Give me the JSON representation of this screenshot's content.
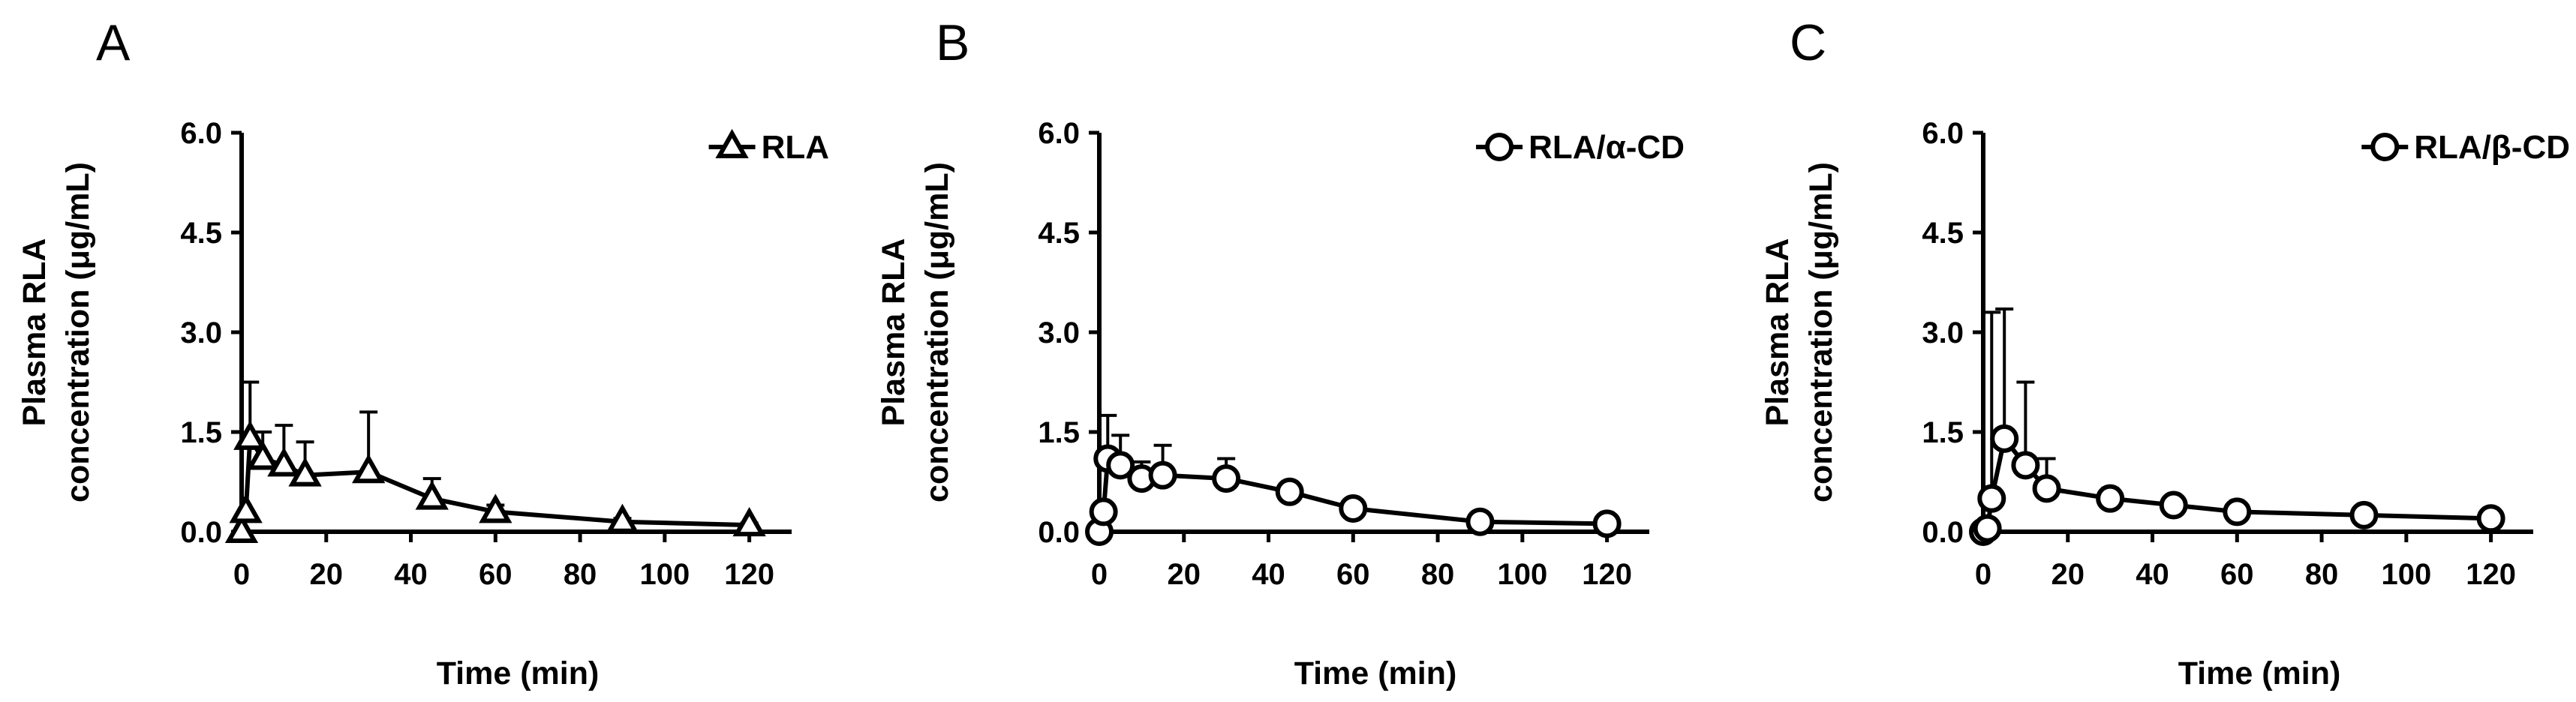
{
  "chart_data": [
    {
      "type": "line",
      "panel_label": "A",
      "xlabel": "Time (min)",
      "ylabel": [
        "Plasma RLA",
        "concentration  (μg/mL)"
      ],
      "xlim": [
        0,
        130
      ],
      "ylim": [
        0,
        6.0
      ],
      "xticks": [
        0,
        20,
        40,
        60,
        80,
        100,
        120
      ],
      "yticks": [
        "0.0",
        "1.5",
        "3.0",
        "4.5",
        "6.0"
      ],
      "grid": false,
      "legend_position": "top-right",
      "series": [
        {
          "name": "RLA",
          "marker": "triangle",
          "x": [
            0,
            1,
            2,
            5,
            10,
            15,
            30,
            45,
            60,
            90,
            120
          ],
          "y": [
            0.0,
            0.3,
            1.4,
            1.1,
            1.0,
            0.85,
            0.9,
            0.5,
            0.3,
            0.15,
            0.1
          ],
          "err": [
            0,
            0,
            0.85,
            0.4,
            0.6,
            0.5,
            0.9,
            0.3,
            0.1,
            0.05,
            0.03
          ]
        }
      ]
    },
    {
      "type": "line",
      "panel_label": "B",
      "xlabel": "Time (min)",
      "ylabel": [
        "Plasma RLA",
        "concentration  (μg/mL)"
      ],
      "xlim": [
        0,
        130
      ],
      "ylim": [
        0,
        6.0
      ],
      "xticks": [
        0,
        20,
        40,
        60,
        80,
        100,
        120
      ],
      "yticks": [
        "0.0",
        "1.5",
        "3.0",
        "4.5",
        "6.0"
      ],
      "grid": false,
      "legend_position": "top-right",
      "series": [
        {
          "name": "RLA/α-CD",
          "marker": "circle",
          "x": [
            0,
            1,
            2,
            5,
            10,
            15,
            30,
            45,
            60,
            90,
            120
          ],
          "y": [
            0.0,
            0.3,
            1.1,
            1.0,
            0.8,
            0.85,
            0.8,
            0.6,
            0.35,
            0.15,
            0.12
          ],
          "err": [
            0,
            0,
            0.65,
            0.45,
            0.25,
            0.45,
            0.3,
            0.1,
            0.05,
            0.05,
            0.03
          ]
        }
      ]
    },
    {
      "type": "line",
      "panel_label": "C",
      "xlabel": "Time (min)",
      "ylabel": [
        "Plasma RLA",
        "concentration  (μg/mL)"
      ],
      "xlim": [
        0,
        130
      ],
      "ylim": [
        0,
        6.0
      ],
      "xticks": [
        0,
        20,
        40,
        60,
        80,
        100,
        120
      ],
      "yticks": [
        "0.0",
        "1.5",
        "3.0",
        "4.5",
        "6.0"
      ],
      "grid": false,
      "legend_position": "top-right",
      "series": [
        {
          "name": "RLA/β-CD",
          "marker": "circle",
          "x": [
            0,
            1,
            2,
            5,
            10,
            15,
            30,
            45,
            60,
            90,
            120
          ],
          "y": [
            0.0,
            0.05,
            0.5,
            1.4,
            1.0,
            0.65,
            0.5,
            0.4,
            0.3,
            0.25,
            0.2
          ],
          "err": [
            0,
            0,
            2.8,
            1.95,
            1.25,
            0.45,
            0.15,
            0.1,
            0.05,
            0.05,
            0.05
          ]
        }
      ]
    }
  ]
}
